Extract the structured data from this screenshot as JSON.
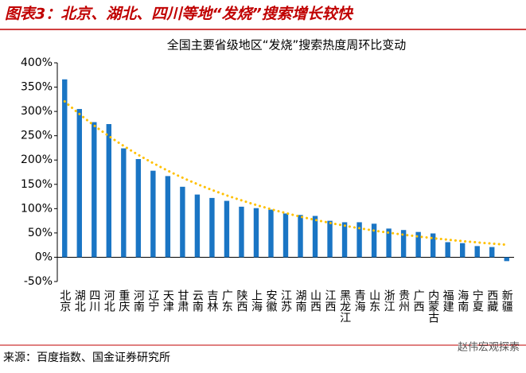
{
  "figure_title": "图表3：北京、湖北、四川等地“发烧”搜索增长较快",
  "source": "来源：百度指数、国金证券研究所",
  "watermark": "赵伟宏观探索",
  "chart_data": {
    "type": "bar",
    "title": "全国主要省级地区“发烧”搜索热度周环比变动",
    "categories": [
      "北京",
      "湖北",
      "四川",
      "河北",
      "重庆",
      "河南",
      "辽宁",
      "天津",
      "甘肃",
      "云南",
      "吉林",
      "广东",
      "陕西",
      "上海",
      "安徽",
      "江苏",
      "湖南",
      "山西",
      "江西",
      "黑龙江",
      "青海",
      "山东",
      "浙江",
      "贵州",
      "广西",
      "内蒙古",
      "福建",
      "海南",
      "宁夏",
      "西藏",
      "新疆"
    ],
    "values": [
      366,
      305,
      278,
      274,
      224,
      202,
      178,
      167,
      145,
      129,
      122,
      116,
      104,
      101,
      98,
      90,
      87,
      85,
      75,
      72,
      72,
      69,
      59,
      56,
      52,
      49,
      31,
      29,
      23,
      21,
      -8
    ],
    "color": "#1a75c4",
    "trendline": {
      "kind": "exponential",
      "color": "#ffc000"
    },
    "ylim": [
      -50,
      400
    ],
    "yticks": [
      {
        "value": -50,
        "label": "-50%"
      },
      {
        "value": 0,
        "label": "0%"
      },
      {
        "value": 50,
        "label": "50%"
      },
      {
        "value": 100,
        "label": "100%"
      },
      {
        "value": 150,
        "label": "150%"
      },
      {
        "value": 200,
        "label": "200%"
      },
      {
        "value": 250,
        "label": "250%"
      },
      {
        "value": 300,
        "label": "300%"
      },
      {
        "value": 350,
        "label": "350%"
      },
      {
        "value": 400,
        "label": "400%"
      }
    ],
    "grid": false
  }
}
